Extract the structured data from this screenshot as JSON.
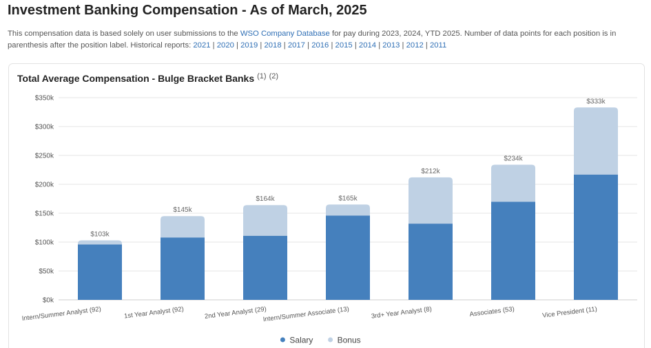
{
  "header": {
    "title": "Investment Banking Compensation - As of March, 2025",
    "intro_before": "This compensation data is based solely on user submissions to the",
    "intro_link": "WSO Company Database",
    "intro_after": "for pay during 2023, 2024, YTD 2025. Number of data points for each position is in parenthesis after the position label. Historical reports:",
    "separator": "|",
    "years": [
      "2021",
      "2020",
      "2019",
      "2018",
      "2017",
      "2016",
      "2015",
      "2014",
      "2013",
      "2012",
      "2011"
    ]
  },
  "chart_data": {
    "type": "stacked_bar",
    "title": "Total Average Compensation - Bulge Bracket Banks",
    "title_notes": [
      "(1)",
      "(2)"
    ],
    "categories": [
      "Intern/Summer Analyst (92)",
      "1st Year Analyst (92)",
      "2nd Year Analyst (29)",
      "Intern/Summer Associate (13)",
      "3rd+ Year Analyst (8)",
      "Associates (53)",
      "Vice President (11)"
    ],
    "series": [
      {
        "name": "Salary",
        "color": "#4580bd",
        "values": [
          96,
          108,
          111,
          146,
          132,
          170,
          217
        ]
      },
      {
        "name": "Bonus",
        "color": "#bfd1e4",
        "values": [
          7,
          37,
          53,
          19,
          80,
          64,
          116
        ]
      }
    ],
    "totals": {
      "values": [
        103,
        145,
        164,
        165,
        212,
        234,
        333
      ],
      "value_labels": [
        "$103k",
        "$145k",
        "$164k",
        "$165k",
        "$212k",
        "$234k",
        "$333k"
      ]
    },
    "ylim": [
      0,
      350
    ],
    "yticks": [
      {
        "value": 0,
        "label": "$0k"
      },
      {
        "value": 50,
        "label": "$50k"
      },
      {
        "value": 100,
        "label": "$100k"
      },
      {
        "value": 150,
        "label": "$150k"
      },
      {
        "value": 200,
        "label": "$200k"
      },
      {
        "value": 250,
        "label": "$250k"
      },
      {
        "value": 300,
        "label": "$300k"
      },
      {
        "value": 350,
        "label": "$350k"
      }
    ],
    "grid": true,
    "legend": "bottom"
  }
}
